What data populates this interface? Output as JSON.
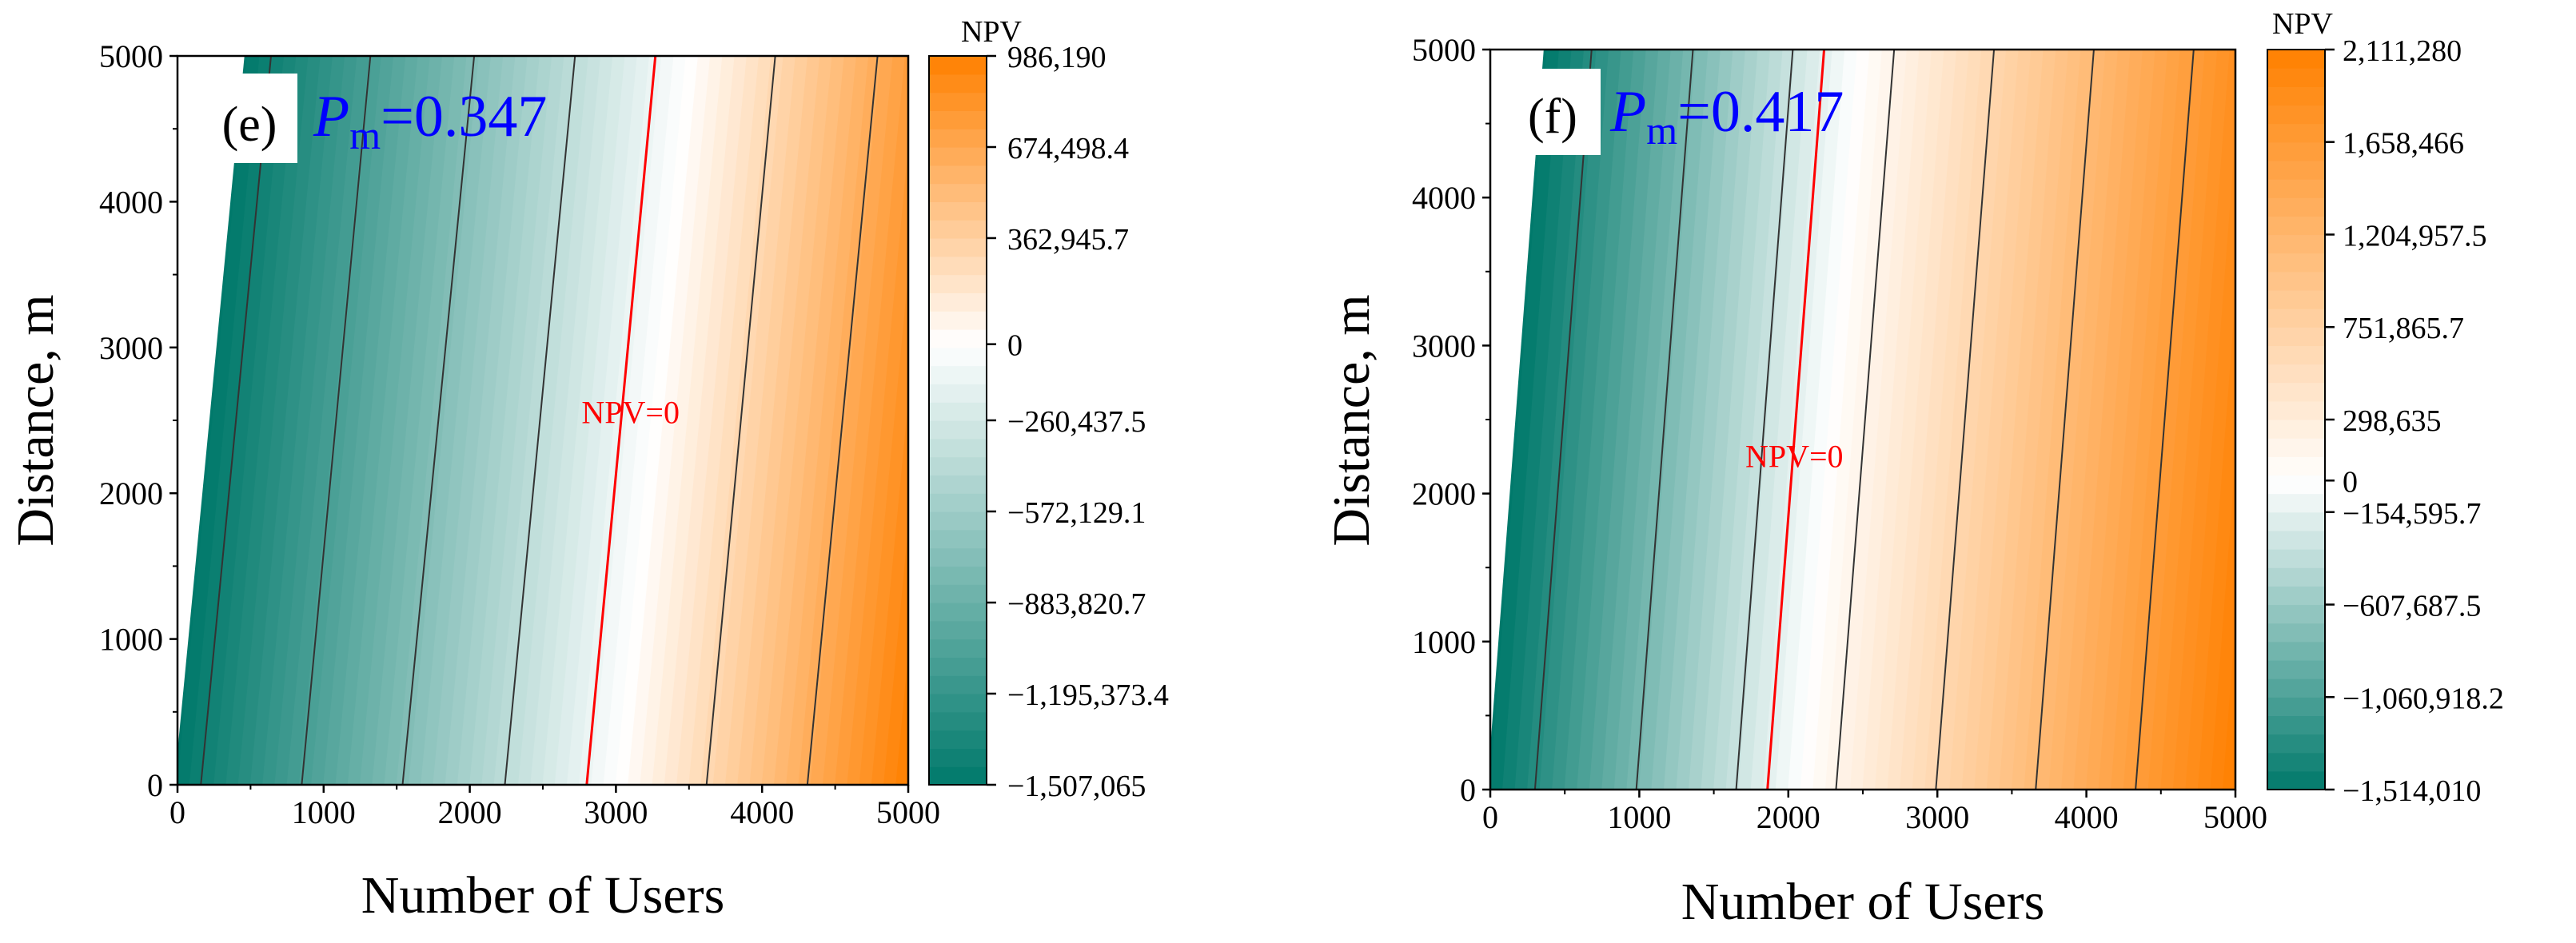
{
  "chart_data": [
    {
      "type": "contour",
      "panel_label": "(e)",
      "pm_symbol": "P",
      "pm_subscript": "m",
      "pm_value_text": "=0.347",
      "p_m": 0.347,
      "xlabel": "Number of Users",
      "ylabel": "Distance, m",
      "xlim": [
        0,
        5000
      ],
      "ylim": [
        0,
        5000
      ],
      "xticks": [
        0,
        1000,
        2000,
        3000,
        4000,
        5000
      ],
      "yticks": [
        0,
        1000,
        2000,
        3000,
        4000,
        5000
      ],
      "xtick_labels": [
        "0",
        "1000",
        "2000",
        "3000",
        "4000",
        "5000"
      ],
      "ytick_labels": [
        "0",
        "1000",
        "2000",
        "3000",
        "4000",
        "5000"
      ],
      "contour_lines": [
        {
          "x_at_y0": 160,
          "x_at_y5000": 640,
          "zero": false
        },
        {
          "x_at_y0": 850,
          "x_at_y5000": 1320,
          "zero": false
        },
        {
          "x_at_y0": 1540,
          "x_at_y5000": 2030,
          "zero": false
        },
        {
          "x_at_y0": 2240,
          "x_at_y5000": 2720,
          "zero": false
        },
        {
          "x_at_y0": 2800,
          "x_at_y5000": 3270,
          "zero": true
        },
        {
          "x_at_y0": 3620,
          "x_at_y5000": 4090,
          "zero": false
        },
        {
          "x_at_y0": 4310,
          "x_at_y5000": 4790,
          "zero": false
        }
      ],
      "zero_label": "NPV=0",
      "zero_label_pos": [
        3100,
        2480
      ],
      "colorbar": {
        "title": "NPV",
        "min": -1507065,
        "max": 986190,
        "zero_fraction": 0.6045,
        "ticks": [
          {
            "value": 986190,
            "label": "986,190"
          },
          {
            "value": 674498.4,
            "label": "674,498.4"
          },
          {
            "value": 362945.7,
            "label": "362,945.7"
          },
          {
            "value": 0,
            "label": "0"
          },
          {
            "value": -260437.5,
            "label": "−260,437.5"
          },
          {
            "value": -572129.1,
            "label": "−572,129.1"
          },
          {
            "value": -883820.7,
            "label": "−883,820.7"
          },
          {
            "value": -1195373.4,
            "label": "−1,195,373.4"
          },
          {
            "value": -1507065,
            "label": "−1,507,065"
          }
        ]
      }
    },
    {
      "type": "contour",
      "panel_label": "(f)",
      "pm_symbol": "P",
      "pm_subscript": "m",
      "pm_value_text": "=0.417",
      "p_m": 0.417,
      "xlabel": "Number of Users",
      "ylabel": "Distance, m",
      "xlim": [
        0,
        5000
      ],
      "ylim": [
        0,
        5000
      ],
      "xticks": [
        0,
        1000,
        2000,
        3000,
        4000,
        5000
      ],
      "yticks": [
        0,
        1000,
        2000,
        3000,
        4000,
        5000
      ],
      "xtick_labels": [
        "0",
        "1000",
        "2000",
        "3000",
        "4000",
        "5000"
      ],
      "ytick_labels": [
        "0",
        "1000",
        "2000",
        "3000",
        "4000",
        "5000"
      ],
      "contour_lines": [
        {
          "x_at_y0": 300,
          "x_at_y5000": 680,
          "zero": false
        },
        {
          "x_at_y0": 980,
          "x_at_y5000": 1360,
          "zero": false
        },
        {
          "x_at_y0": 1650,
          "x_at_y5000": 2030,
          "zero": false
        },
        {
          "x_at_y0": 1860,
          "x_at_y5000": 2240,
          "zero": true
        },
        {
          "x_at_y0": 2320,
          "x_at_y5000": 2710,
          "zero": false
        },
        {
          "x_at_y0": 2990,
          "x_at_y5000": 3380,
          "zero": false
        },
        {
          "x_at_y0": 3660,
          "x_at_y5000": 4050,
          "zero": false
        },
        {
          "x_at_y0": 4330,
          "x_at_y5000": 4720,
          "zero": false
        }
      ],
      "zero_label": "NPV=0",
      "zero_label_pos": [
        2040,
        2180
      ],
      "colorbar": {
        "title": "NPV",
        "min": -1514010,
        "max": 2111280,
        "zero_fraction": 0.4176,
        "ticks": [
          {
            "value": 2111280,
            "label": "2,111,280"
          },
          {
            "value": 1658466,
            "label": "1,658,466"
          },
          {
            "value": 1204957.5,
            "label": "1,204,957.5"
          },
          {
            "value": 751865.7,
            "label": "751,865.7"
          },
          {
            "value": 298635,
            "label": "298,635"
          },
          {
            "value": 0,
            "label": "0"
          },
          {
            "value": -154595.7,
            "label": "−154,595.7"
          },
          {
            "value": -607687.5,
            "label": "−607,687.5"
          },
          {
            "value": -1060918.2,
            "label": "−1,060,918.2"
          },
          {
            "value": -1514010,
            "label": "−1,514,010"
          }
        ]
      }
    }
  ],
  "colors": {
    "teal": "#00796b",
    "white": "#ffffff",
    "orange": "#ff8000",
    "contour_line": "#333333",
    "zero_line": "#ff0000",
    "pm_text": "#0000ff",
    "axis": "#000000"
  }
}
